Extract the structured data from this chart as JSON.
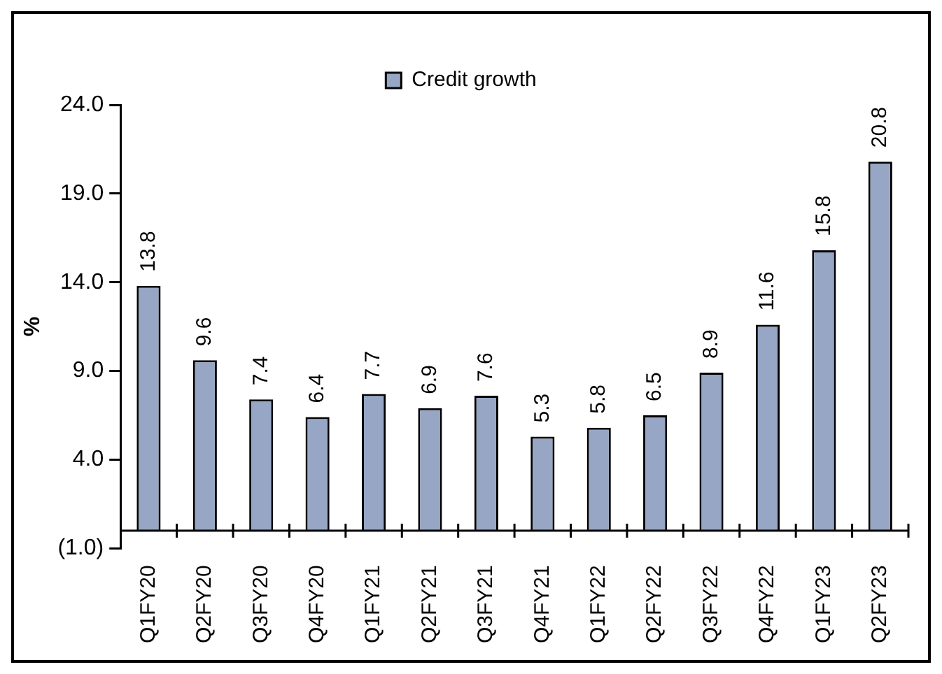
{
  "chart_data": {
    "type": "bar",
    "ylabel": "%",
    "categories": [
      "Q1FY20",
      "Q2FY20",
      "Q3FY20",
      "Q4FY20",
      "Q1FY21",
      "Q2FY21",
      "Q3FY21",
      "Q4FY21",
      "Q1FY22",
      "Q2FY22",
      "Q3FY22",
      "Q4FY22",
      "Q1FY23",
      "Q2FY23"
    ],
    "series": [
      {
        "name": "Credit growth",
        "color": "#96a6c4",
        "values": [
          13.8,
          9.6,
          7.4,
          6.4,
          7.7,
          6.9,
          7.6,
          5.3,
          5.8,
          6.5,
          8.9,
          11.6,
          15.8,
          20.8
        ]
      }
    ],
    "ylim": [
      -1,
      24
    ],
    "yticks": [
      {
        "value": -1,
        "label": "(1.0)"
      },
      {
        "value": 4,
        "label": "4.0"
      },
      {
        "value": 9,
        "label": "9.0"
      },
      {
        "value": 14,
        "label": "14.0"
      },
      {
        "value": 19,
        "label": "19.0"
      },
      {
        "value": 24,
        "label": "24.0"
      }
    ],
    "data_labels": true,
    "legend": "top",
    "grid": false
  }
}
